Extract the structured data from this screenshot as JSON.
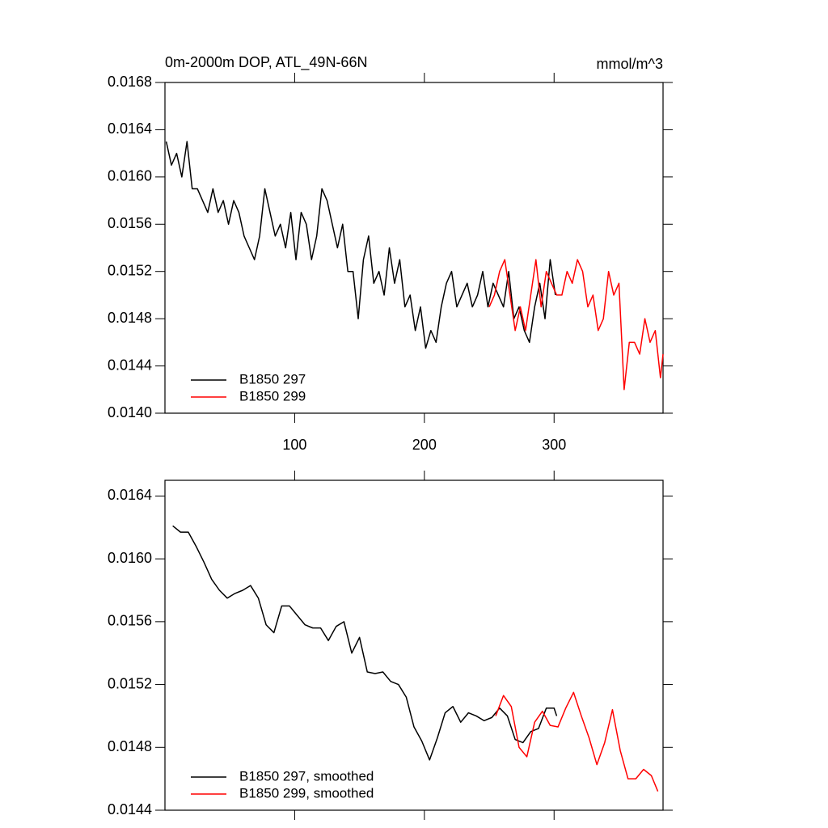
{
  "chart_data": [
    {
      "type": "line",
      "title": "0m-2000m DOP, ATL_49N-66N",
      "units": "mmol/m^3",
      "xlim": [
        0,
        384
      ],
      "xticks": [
        100,
        200,
        300
      ],
      "show_xtick_labels": true,
      "ylim": [
        0.014,
        0.0168
      ],
      "yticks": [
        {
          "value": 0.014,
          "label": "0.0140"
        },
        0.0144,
        0.0148,
        0.0152,
        0.0156,
        {
          "value": 0.016,
          "label": "0.0160"
        },
        0.0164,
        0.0168
      ],
      "legend": "lower left",
      "series": [
        {
          "name": "B1850 297",
          "color": "#000000",
          "x": [
            1,
            5,
            9,
            13,
            17,
            21,
            25,
            29,
            33,
            37,
            41,
            45,
            49,
            53,
            57,
            61,
            65,
            69,
            73,
            77,
            81,
            85,
            89,
            93,
            97,
            101,
            105,
            109,
            113,
            117,
            121,
            125,
            129,
            133,
            137,
            141,
            145,
            149,
            153,
            157,
            161,
            165,
            169,
            173,
            177,
            181,
            185,
            189,
            193,
            197,
            201,
            205,
            209,
            213,
            217,
            221,
            225,
            229,
            233,
            237,
            241,
            245,
            249,
            253,
            257,
            261,
            265,
            269,
            273,
            277,
            281,
            285,
            289,
            293,
            297,
            301
          ],
          "values": [
            0.0163,
            0.0161,
            0.0162,
            0.016,
            0.0163,
            0.0159,
            0.0159,
            0.0158,
            0.0157,
            0.0159,
            0.0157,
            0.0158,
            0.0156,
            0.0158,
            0.0157,
            0.0155,
            0.0154,
            0.0153,
            0.0155,
            0.0159,
            0.0157,
            0.0155,
            0.0156,
            0.0154,
            0.0157,
            0.0153,
            0.0157,
            0.0156,
            0.0153,
            0.0155,
            0.0159,
            0.0158,
            0.0156,
            0.0154,
            0.0156,
            0.0152,
            0.0152,
            0.0148,
            0.0153,
            0.0155,
            0.0151,
            0.0152,
            0.015,
            0.0154,
            0.0151,
            0.0153,
            0.0149,
            0.015,
            0.0147,
            0.0149,
            0.01455,
            0.0147,
            0.0146,
            0.0149,
            0.0151,
            0.0152,
            0.0149,
            0.015,
            0.0151,
            0.0149,
            0.015,
            0.0152,
            0.0149,
            0.0151,
            0.015,
            0.0149,
            0.0152,
            0.0148,
            0.0149,
            0.0147,
            0.0146,
            0.0149,
            0.0151,
            0.0148,
            0.0153,
            0.015
          ]
        },
        {
          "name": "B1850 299",
          "color": "#ff0000",
          "x": [
            250,
            254,
            258,
            262,
            266,
            270,
            274,
            278,
            282,
            286,
            290,
            294,
            298,
            302,
            306,
            310,
            314,
            318,
            322,
            326,
            330,
            334,
            338,
            342,
            346,
            350,
            354,
            358,
            362,
            366,
            370,
            374,
            378,
            382,
            384
          ],
          "values": [
            0.0149,
            0.015,
            0.0152,
            0.0153,
            0.015,
            0.0147,
            0.0149,
            0.0147,
            0.015,
            0.0153,
            0.0149,
            0.0152,
            0.0151,
            0.015,
            0.015,
            0.0152,
            0.0151,
            0.0153,
            0.0152,
            0.0149,
            0.015,
            0.0147,
            0.0148,
            0.0152,
            0.015,
            0.0151,
            0.0142,
            0.0146,
            0.0146,
            0.0145,
            0.0148,
            0.0146,
            0.0147,
            0.0143,
            0.0145
          ]
        }
      ]
    },
    {
      "type": "line",
      "xlim": [
        0,
        384
      ],
      "xticks": [
        100,
        200,
        300
      ],
      "show_xtick_labels": false,
      "ylim": [
        0.0144,
        0.0165
      ],
      "yticks": [
        0.0144,
        0.0148,
        0.0152,
        0.0156,
        {
          "value": 0.016,
          "label": "0.0160"
        },
        0.0164
      ],
      "legend": "lower left",
      "series": [
        {
          "name": "B1850 297, smoothed",
          "color": "#000000",
          "x": [
            6,
            12,
            18,
            24,
            30,
            36,
            42,
            48,
            54,
            60,
            66,
            72,
            78,
            84,
            90,
            96,
            102,
            108,
            114,
            120,
            126,
            132,
            138,
            144,
            150,
            156,
            162,
            168,
            174,
            180,
            186,
            192,
            198,
            204,
            210,
            216,
            222,
            228,
            234,
            240,
            246,
            252,
            258,
            264,
            270,
            276,
            282,
            288,
            294,
            300,
            302
          ],
          "values": [
            0.01621,
            0.01617,
            0.01617,
            0.01608,
            0.01598,
            0.01587,
            0.0158,
            0.01575,
            0.01578,
            0.0158,
            0.01583,
            0.01575,
            0.01558,
            0.01553,
            0.0157,
            0.0157,
            0.01564,
            0.01558,
            0.01556,
            0.01556,
            0.01548,
            0.01557,
            0.0156,
            0.0154,
            0.0155,
            0.01528,
            0.01527,
            0.01528,
            0.01522,
            0.0152,
            0.01512,
            0.01493,
            0.01484,
            0.01472,
            0.01486,
            0.01502,
            0.01506,
            0.01496,
            0.01502,
            0.015,
            0.01497,
            0.01499,
            0.01505,
            0.015,
            0.01485,
            0.01483,
            0.0149,
            0.01492,
            0.01505,
            0.01505,
            0.015
          ]
        },
        {
          "name": "B1850 299, smoothed",
          "color": "#ff0000",
          "x": [
            255,
            261,
            267,
            273,
            279,
            285,
            291,
            297,
            303,
            309,
            315,
            321,
            327,
            333,
            339,
            345,
            351,
            357,
            363,
            369,
            375,
            380
          ],
          "values": [
            0.015,
            0.01513,
            0.01506,
            0.0148,
            0.01474,
            0.01496,
            0.01503,
            0.01494,
            0.01493,
            0.01505,
            0.01515,
            0.015,
            0.01486,
            0.01469,
            0.01483,
            0.01504,
            0.01478,
            0.0146,
            0.0146,
            0.01466,
            0.01462,
            0.01452
          ]
        }
      ]
    }
  ]
}
